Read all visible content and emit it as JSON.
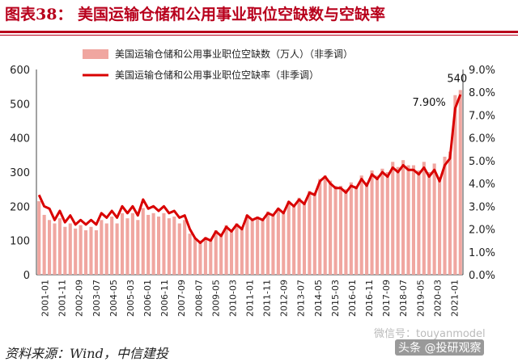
{
  "header": {
    "title": "图表38：  美国运输仓储和公用事业职位空缺数与空缺率"
  },
  "footer": {
    "source": "资料来源：Wind，中信建投"
  },
  "watermark": {
    "text1": "微信号：touyanmodel",
    "text2": "头条 @投研观察"
  },
  "colors": {
    "bar": "#f0a6a0",
    "line": "#d90000",
    "title": "#b8001c"
  },
  "chart_data": {
    "type": "bar",
    "title": "",
    "xlabel": "",
    "ylabel": "",
    "ylim": [
      0,
      600
    ],
    "y2lim": [
      0,
      9
    ],
    "yticks": [
      "0",
      "100",
      "200",
      "300",
      "400",
      "500",
      "600"
    ],
    "y2ticks": [
      "0.0%",
      "1.0%",
      "2.0%",
      "3.0%",
      "4.0%",
      "5.0%",
      "6.0%",
      "7.0%",
      "8.0%",
      "9.0%"
    ],
    "xticks": [
      "2001-01",
      "2001-11",
      "2002-09",
      "2003-07",
      "2004-05",
      "2005-03",
      "2006-01",
      "2006-11",
      "2007-09",
      "2008-07",
      "2009-05",
      "2010-03",
      "2011-01",
      "2011-11",
      "2012-09",
      "2013-07",
      "2014-05",
      "2015-03",
      "2016-01",
      "2016-11",
      "2017-09",
      "2018-07",
      "2019-05",
      "2020-03",
      "2021-01"
    ],
    "x_start": "2001-01",
    "x_end": "2021-06",
    "x_step": "quarter",
    "legend_position": "top",
    "series": [
      {
        "name": "美国运输仓储和公用事业职位空缺数（万人）（非季调）",
        "type": "bar",
        "axis": "left",
        "values": [
          215,
          175,
          160,
          150,
          165,
          140,
          150,
          135,
          145,
          130,
          140,
          130,
          160,
          150,
          170,
          150,
          180,
          165,
          180,
          160,
          195,
          175,
          180,
          170,
          180,
          165,
          170,
          150,
          160,
          120,
          105,
          100,
          110,
          105,
          130,
          120,
          145,
          130,
          150,
          140,
          175,
          160,
          170,
          160,
          185,
          175,
          195,
          180,
          215,
          200,
          225,
          210,
          245,
          240,
          280,
          290,
          275,
          260,
          260,
          250,
          270,
          260,
          290,
          270,
          305,
          290,
          310,
          300,
          330,
          315,
          335,
          320,
          320,
          305,
          330,
          300,
          325,
          285,
          345,
          360,
          525,
          540
        ]
      },
      {
        "name": "美国运输仓储和公用事业职位空缺率（非季调）",
        "type": "line",
        "axis": "right",
        "values": [
          3.5,
          3.0,
          2.9,
          2.4,
          2.8,
          2.3,
          2.6,
          2.2,
          2.4,
          2.2,
          2.4,
          2.2,
          2.7,
          2.5,
          2.8,
          2.5,
          3.0,
          2.7,
          3.0,
          2.6,
          3.3,
          2.9,
          3.0,
          2.8,
          3.0,
          2.7,
          2.8,
          2.5,
          2.6,
          2.0,
          1.6,
          1.4,
          1.6,
          1.5,
          1.9,
          1.7,
          2.1,
          1.9,
          2.2,
          2.0,
          2.6,
          2.4,
          2.5,
          2.4,
          2.7,
          2.6,
          2.9,
          2.7,
          3.2,
          3.0,
          3.3,
          3.1,
          3.6,
          3.5,
          4.1,
          4.3,
          4.0,
          3.8,
          3.8,
          3.6,
          3.9,
          3.8,
          4.2,
          3.9,
          4.4,
          4.2,
          4.5,
          4.3,
          4.7,
          4.5,
          4.8,
          4.6,
          4.6,
          4.4,
          4.7,
          4.3,
          4.6,
          4.1,
          4.8,
          5.1,
          7.3,
          7.9
        ]
      }
    ],
    "annotations": [
      {
        "text": "540",
        "series": 0,
        "index": 81
      },
      {
        "text": "7.90%",
        "series": 1,
        "index": 81
      }
    ]
  }
}
